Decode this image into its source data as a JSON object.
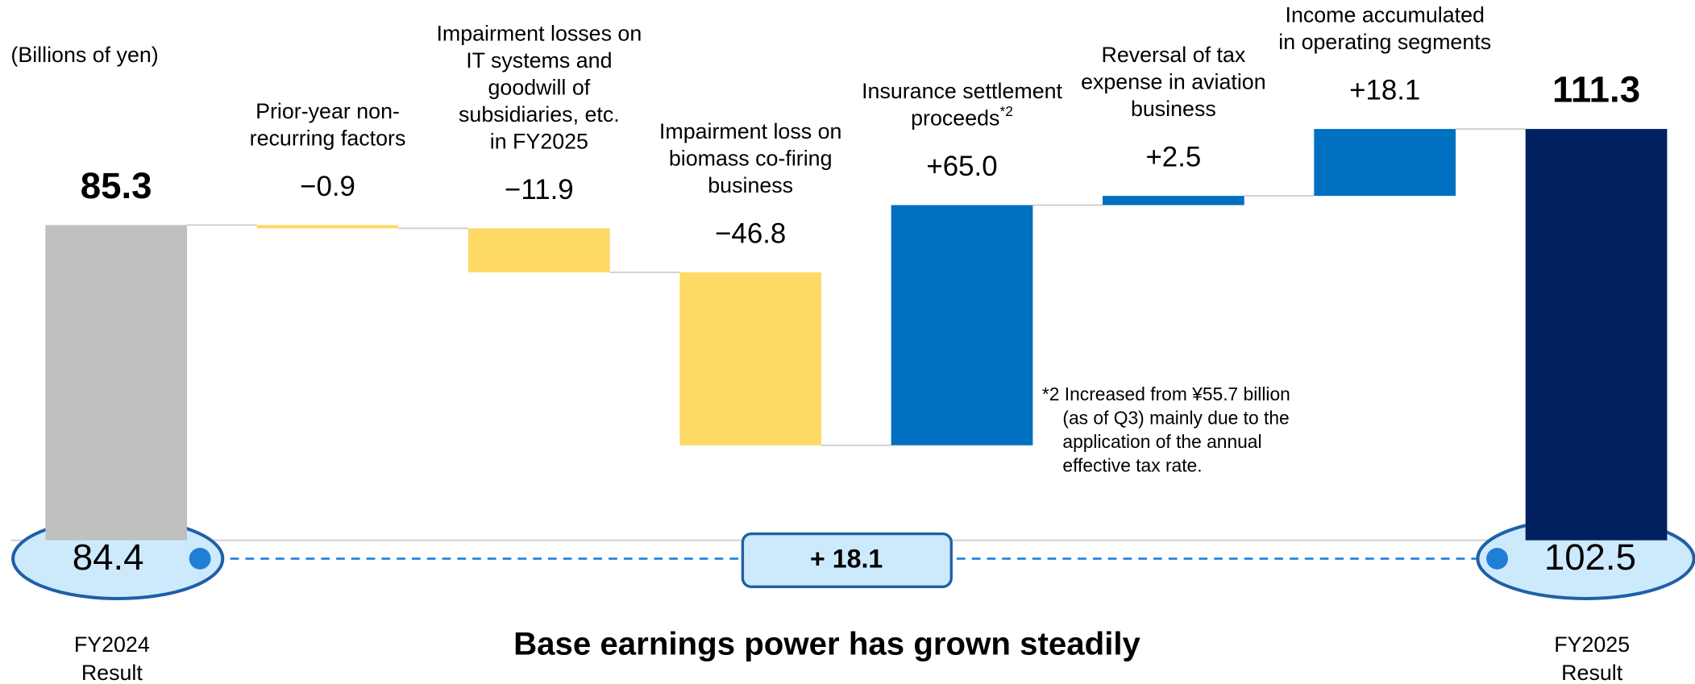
{
  "chart_data": {
    "type": "waterfall",
    "unit_label": "(Billions of yen)",
    "categories": [
      [
        "FY2024",
        "Result"
      ],
      [
        "Prior-year non-",
        "recurring factors"
      ],
      [
        "Impairment losses on",
        "IT systems and",
        "goodwill of",
        "subsidiaries, etc.",
        "in FY2025"
      ],
      [
        "Impairment loss on",
        "biomass co-firing",
        "business"
      ],
      [
        "Insurance settlement",
        "proceeds"
      ],
      [
        "Reversal of tax",
        "expense in aviation",
        "business"
      ],
      [
        "Income accumulated",
        "in operating segments"
      ],
      [
        "FY2025",
        "Result"
      ]
    ],
    "note_marks": [
      null,
      null,
      null,
      null,
      "*2",
      null,
      null,
      null
    ],
    "kinds": [
      "total",
      "delta",
      "delta",
      "delta",
      "delta",
      "delta",
      "delta",
      "total"
    ],
    "values": [
      85.3,
      -0.9,
      -11.9,
      -46.8,
      65.0,
      2.5,
      18.1,
      111.3
    ],
    "value_labels": [
      "85.3",
      "−0.9",
      "−11.9",
      "−46.8",
      "+65.0",
      "+2.5",
      "+18.1",
      "111.3"
    ],
    "colors": {
      "start": "#bfbfbf",
      "negative": "#ffd966",
      "positive": "#0070c0",
      "end": "#002060"
    },
    "ylim": [
      0,
      120
    ],
    "footnote": [
      "*2 Increased from ¥55.7 billion",
      "(as of Q3) mainly due to the",
      "application of the annual",
      "effective tax rate."
    ],
    "base_earnings": {
      "start": 84.4,
      "end": 102.5,
      "change_label": "+ 18.1",
      "caption": "Base earnings power has grown steadily"
    }
  }
}
